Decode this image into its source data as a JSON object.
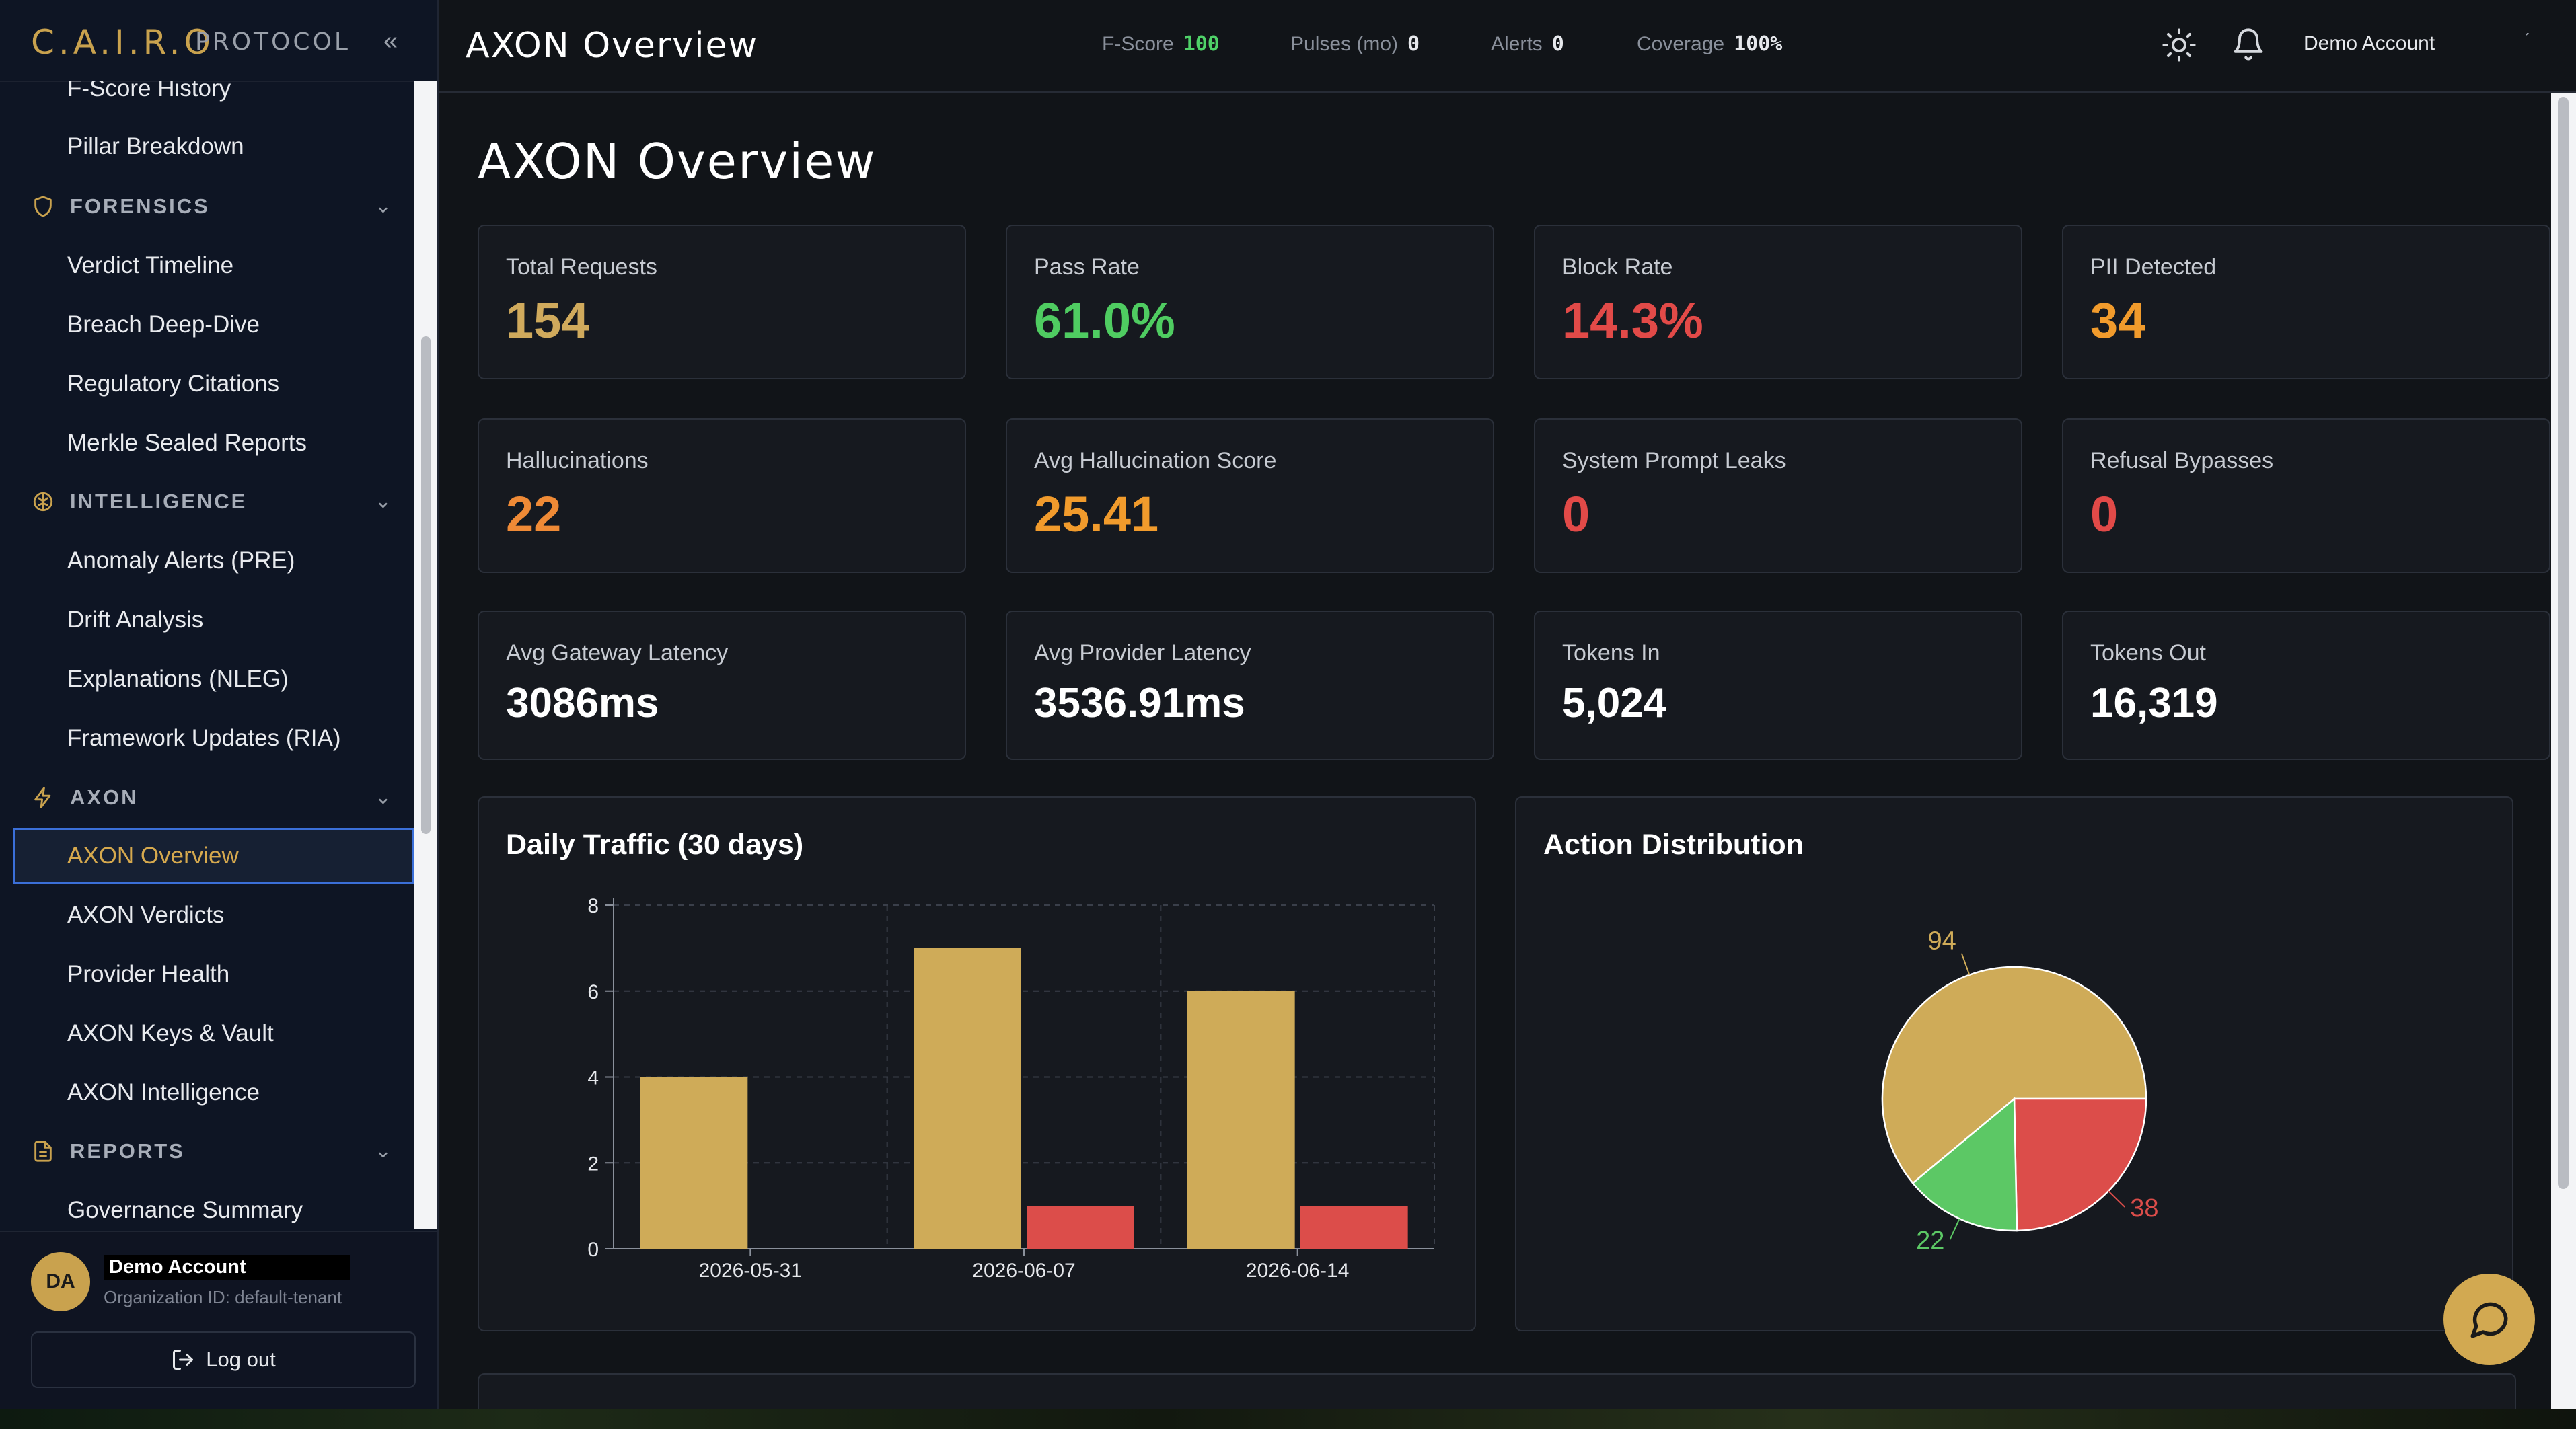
{
  "brand": {
    "logo": "C.A.I.R.O",
    "suffix": "PROTOCOL"
  },
  "sidebar": {
    "items": [
      {
        "type": "item",
        "label": "F-Score History",
        "name": "sidebar-item-f-score-history"
      },
      {
        "type": "item",
        "label": "Pillar Breakdown",
        "name": "sidebar-item-pillar-breakdown"
      },
      {
        "type": "section",
        "label": "FORENSICS",
        "icon": "shield-icon",
        "name": "sidebar-section-forensics"
      },
      {
        "type": "item",
        "label": "Verdict Timeline",
        "name": "sidebar-item-verdict-timeline"
      },
      {
        "type": "item",
        "label": "Breach Deep-Dive",
        "name": "sidebar-item-breach-deep-dive"
      },
      {
        "type": "item",
        "label": "Regulatory Citations",
        "name": "sidebar-item-regulatory-citations"
      },
      {
        "type": "item",
        "label": "Merkle Sealed Reports",
        "name": "sidebar-item-merkle-sealed-reports"
      },
      {
        "type": "section",
        "label": "INTELLIGENCE",
        "icon": "brain-icon",
        "name": "sidebar-section-intelligence"
      },
      {
        "type": "item",
        "label": "Anomaly Alerts (PRE)",
        "name": "sidebar-item-anomaly-alerts"
      },
      {
        "type": "item",
        "label": "Drift Analysis",
        "name": "sidebar-item-drift-analysis"
      },
      {
        "type": "item",
        "label": "Explanations (NLEG)",
        "name": "sidebar-item-explanations"
      },
      {
        "type": "item",
        "label": "Framework Updates (RIA)",
        "name": "sidebar-item-framework-updates"
      },
      {
        "type": "section",
        "label": "AXON",
        "icon": "lightning-icon",
        "name": "sidebar-section-axon"
      },
      {
        "type": "item",
        "label": "AXON Overview",
        "active": true,
        "name": "sidebar-item-axon-overview"
      },
      {
        "type": "item",
        "label": "AXON Verdicts",
        "name": "sidebar-item-axon-verdicts"
      },
      {
        "type": "item",
        "label": "Provider Health",
        "name": "sidebar-item-provider-health"
      },
      {
        "type": "item",
        "label": "AXON Keys & Vault",
        "name": "sidebar-item-axon-keys-vault"
      },
      {
        "type": "item",
        "label": "AXON Intelligence",
        "name": "sidebar-item-axon-intelligence"
      },
      {
        "type": "section",
        "label": "REPORTS",
        "icon": "document-icon",
        "name": "sidebar-section-reports"
      },
      {
        "type": "item",
        "label": "Governance Summary",
        "name": "sidebar-item-governance-summary"
      }
    ]
  },
  "account": {
    "initials": "DA",
    "name": "Demo Account",
    "org": "Organization ID: default-tenant",
    "logout_label": "Log out"
  },
  "topbar": {
    "title": "AXON Overview",
    "stats": [
      {
        "label": "F-Score",
        "value": "100",
        "highlight": true
      },
      {
        "label": "Pulses (mo)",
        "value": "0"
      },
      {
        "label": "Alerts",
        "value": "0"
      },
      {
        "label": "Coverage",
        "value": "100%"
      }
    ],
    "account_label": "Demo Account"
  },
  "page": {
    "title": "AXON Overview",
    "metrics": [
      {
        "label": "Total Requests",
        "value": "154",
        "color": "#d0aa5c"
      },
      {
        "label": "Pass Rate",
        "value": "61.0%",
        "color": "#4fcc61"
      },
      {
        "label": "Block Rate",
        "value": "14.3%",
        "color": "#e24a48"
      },
      {
        "label": "PII Detected",
        "value": "34",
        "color": "#f19b2c"
      },
      {
        "label": "Hallucinations",
        "value": "22",
        "color": "#ef8a36"
      },
      {
        "label": "Avg Hallucination Score",
        "value": "25.41",
        "color": "#f19b2c"
      },
      {
        "label": "System Prompt Leaks",
        "value": "0",
        "color": "#e24a48"
      },
      {
        "label": "Refusal Bypasses",
        "value": "0",
        "color": "#e24a48"
      },
      {
        "label": "Avg Gateway Latency",
        "value": "3086ms",
        "color": "#ffffff"
      },
      {
        "label": "Avg Provider Latency",
        "value": "3536.91ms",
        "color": "#ffffff"
      },
      {
        "label": "Tokens In",
        "value": "5,024",
        "color": "#ffffff"
      },
      {
        "label": "Tokens Out",
        "value": "16,319",
        "color": "#ffffff"
      }
    ]
  },
  "chart_data": [
    {
      "type": "bar",
      "title": "Daily Traffic (30 days)",
      "categories": [
        "2026-05-31",
        "2026-06-07",
        "2026-06-14"
      ],
      "series": [
        {
          "color": "#cfab58",
          "values": [
            4,
            7,
            6
          ]
        },
        {
          "color": "#dc4d4a",
          "values": [
            0,
            1,
            1
          ]
        }
      ],
      "ylim": [
        0,
        8
      ],
      "yticks": [
        0,
        2,
        4,
        6,
        8
      ],
      "grid": true
    },
    {
      "type": "pie",
      "title": "Action Distribution",
      "slices": [
        {
          "value": 94,
          "color": "#cfab58"
        },
        {
          "value": 38,
          "color": "#dc4d4a"
        },
        {
          "value": 22,
          "color": "#5cc865"
        }
      ]
    }
  ]
}
